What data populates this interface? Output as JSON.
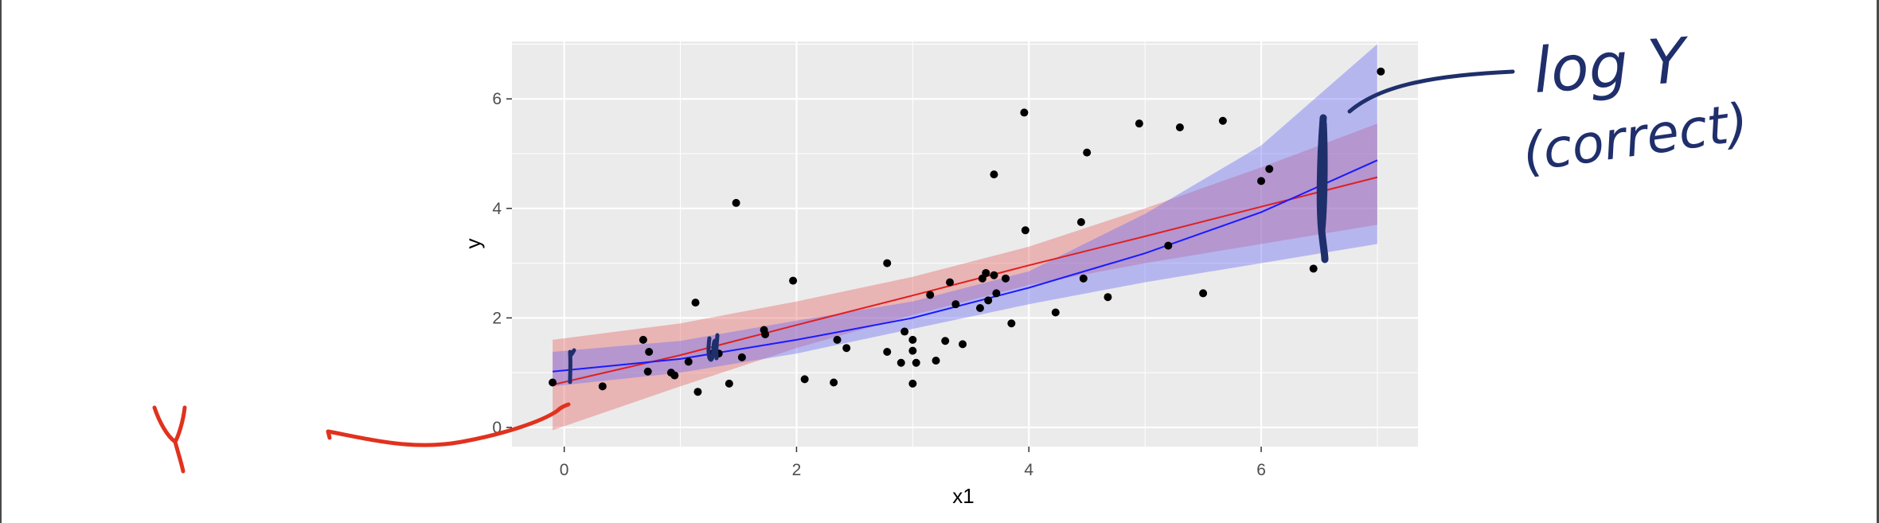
{
  "colors": {
    "panel": "#ebebeb",
    "grid": "#ffffff",
    "points": "#000000",
    "red_line": "#e02020",
    "red_band": "#e86a6a",
    "blue_line": "#1a1aff",
    "blue_band": "#6e6ef5",
    "ink_navy": "#1f2f6b",
    "ink_red": "#e0321e"
  },
  "annotations": {
    "log_y": "log Y",
    "correct": "(correct)",
    "y_label": "Y"
  },
  "chart_data": {
    "type": "scatter",
    "xlabel": "x1",
    "ylabel": "y",
    "xlim": [
      -0.45,
      7.35
    ],
    "ylim": [
      -0.35,
      7.05
    ],
    "x_ticks": [
      0,
      2,
      4,
      6
    ],
    "y_ticks": [
      0,
      2,
      4,
      6
    ],
    "grid": true,
    "points": [
      [
        -0.1,
        0.82
      ],
      [
        0.33,
        0.75
      ],
      [
        0.68,
        1.6
      ],
      [
        0.73,
        1.38
      ],
      [
        0.72,
        1.02
      ],
      [
        0.92,
        1.0
      ],
      [
        0.95,
        0.95
      ],
      [
        1.07,
        1.2
      ],
      [
        1.15,
        0.65
      ],
      [
        1.13,
        2.28
      ],
      [
        1.28,
        1.35
      ],
      [
        1.33,
        1.35
      ],
      [
        1.42,
        0.8
      ],
      [
        1.48,
        4.1
      ],
      [
        1.53,
        1.28
      ],
      [
        1.72,
        1.78
      ],
      [
        1.73,
        1.7
      ],
      [
        1.97,
        2.68
      ],
      [
        2.07,
        0.88
      ],
      [
        2.32,
        0.82
      ],
      [
        2.35,
        1.6
      ],
      [
        2.43,
        1.45
      ],
      [
        2.78,
        3.0
      ],
      [
        2.78,
        1.38
      ],
      [
        2.9,
        1.18
      ],
      [
        2.93,
        1.75
      ],
      [
        3.0,
        1.6
      ],
      [
        3.0,
        1.4
      ],
      [
        3.0,
        0.8
      ],
      [
        3.03,
        1.18
      ],
      [
        3.15,
        2.42
      ],
      [
        3.2,
        1.22
      ],
      [
        3.28,
        1.58
      ],
      [
        3.32,
        2.65
      ],
      [
        3.37,
        2.25
      ],
      [
        3.43,
        1.52
      ],
      [
        3.58,
        2.18
      ],
      [
        3.6,
        2.72
      ],
      [
        3.63,
        2.82
      ],
      [
        3.65,
        2.32
      ],
      [
        3.7,
        2.78
      ],
      [
        3.72,
        2.45
      ],
      [
        3.7,
        4.62
      ],
      [
        3.8,
        2.72
      ],
      [
        3.85,
        1.9
      ],
      [
        3.96,
        5.75
      ],
      [
        3.97,
        3.6
      ],
      [
        4.23,
        2.1
      ],
      [
        4.45,
        3.75
      ],
      [
        4.47,
        2.72
      ],
      [
        4.5,
        5.02
      ],
      [
        4.68,
        2.38
      ],
      [
        4.95,
        5.55
      ],
      [
        5.2,
        3.32
      ],
      [
        5.3,
        5.48
      ],
      [
        5.67,
        5.6
      ],
      [
        5.5,
        2.45
      ],
      [
        6.0,
        4.5
      ],
      [
        6.07,
        4.72
      ],
      [
        6.45,
        2.9
      ],
      [
        7.03,
        6.5
      ]
    ],
    "series": [
      {
        "fit": "linear",
        "color": "#e02020",
        "x": [
          -0.1,
          1,
          2,
          3,
          4,
          5,
          6,
          7
        ],
        "y": [
          0.78,
          1.32,
          1.87,
          2.41,
          2.96,
          3.49,
          4.03,
          4.57
        ],
        "lower": [
          -0.05,
          0.75,
          1.45,
          2.05,
          2.6,
          3.0,
          3.35,
          3.7
        ],
        "upper": [
          1.6,
          1.9,
          2.3,
          2.75,
          3.3,
          4.0,
          4.75,
          5.55
        ]
      },
      {
        "fit": "log-linear",
        "color": "#1a1aff",
        "x": [
          -0.1,
          1,
          2,
          3,
          4,
          5,
          6,
          7
        ],
        "y": [
          1.02,
          1.25,
          1.6,
          2.0,
          2.55,
          3.18,
          3.93,
          4.88
        ],
        "lower": [
          0.75,
          1.0,
          1.35,
          1.8,
          2.25,
          2.65,
          3.0,
          3.35
        ],
        "upper": [
          1.38,
          1.58,
          1.95,
          2.3,
          2.85,
          3.9,
          5.15,
          7.0
        ]
      }
    ]
  }
}
